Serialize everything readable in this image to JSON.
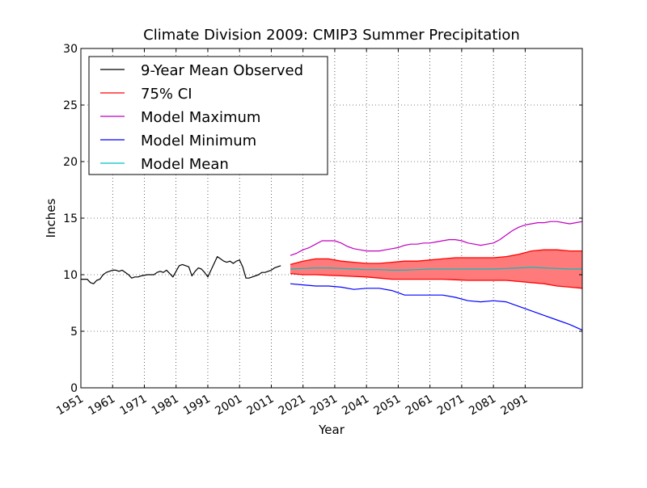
{
  "chart_data": {
    "type": "line",
    "title": "Climate Division 2009: CMIP3 Summer Precipitation",
    "xlabel": "Year",
    "ylabel": "Inches",
    "xlim": [
      1951,
      2109
    ],
    "ylim": [
      0,
      30
    ],
    "x_ticks": [
      1951,
      1961,
      1971,
      1981,
      1991,
      2001,
      2011,
      2021,
      2031,
      2041,
      2051,
      2061,
      2071,
      2081,
      2091
    ],
    "x_tick_labels": [
      "1951",
      "1961",
      "1971",
      "1981",
      "1991",
      "2001",
      "2011",
      "2021",
      "2031",
      "2041",
      "2051",
      "2061",
      "2071",
      "2081",
      "2091"
    ],
    "y_ticks": [
      0,
      5,
      10,
      15,
      20,
      25,
      30
    ],
    "y_tick_labels": [
      "0",
      "5",
      "10",
      "15",
      "20",
      "25",
      "30"
    ],
    "grid": true,
    "legend_position": "top-left",
    "series": [
      {
        "name": "9-Year Mean Observed",
        "color": "#000000",
        "x": [
          1951,
          1953,
          1954,
          1955,
          1956,
          1957,
          1958,
          1959,
          1960,
          1961,
          1962,
          1963,
          1964,
          1966,
          1967,
          1968,
          1969,
          1970,
          1972,
          1974,
          1975,
          1976,
          1977,
          1978,
          1979,
          1980,
          1981,
          1982,
          1983,
          1984,
          1985,
          1986,
          1987,
          1988,
          1989,
          1990,
          1991,
          1992,
          1993,
          1994,
          1995,
          1996,
          1997,
          1998,
          1999,
          2000,
          2001,
          2002,
          2003,
          2004,
          2005,
          2007,
          2008,
          2009,
          2010,
          2011,
          2012,
          2013,
          2014
        ],
        "y": [
          9.6,
          9.6,
          9.3,
          9.2,
          9.5,
          9.6,
          10.0,
          10.2,
          10.3,
          10.4,
          10.4,
          10.3,
          10.4,
          10.0,
          9.7,
          9.8,
          9.8,
          9.9,
          10.0,
          10.0,
          10.2,
          10.3,
          10.2,
          10.4,
          10.1,
          9.8,
          10.3,
          10.8,
          10.9,
          10.8,
          10.7,
          9.9,
          10.3,
          10.6,
          10.5,
          10.2,
          9.8,
          10.4,
          11.0,
          11.6,
          11.4,
          11.2,
          11.1,
          11.2,
          11.0,
          11.2,
          11.3,
          10.7,
          9.7,
          9.7,
          9.8,
          10.0,
          10.2,
          10.2,
          10.3,
          10.4,
          10.6,
          10.7,
          10.8
        ]
      },
      {
        "name": "75% CI",
        "color": "#ff0000",
        "fill_color": "#ff7b7b",
        "x": [
          2017,
          2021,
          2025,
          2029,
          2033,
          2037,
          2041,
          2045,
          2049,
          2053,
          2057,
          2061,
          2065,
          2069,
          2073,
          2077,
          2081,
          2085,
          2089,
          2093,
          2097,
          2101,
          2105,
          2109
        ],
        "upper": [
          10.9,
          11.2,
          11.4,
          11.4,
          11.2,
          11.1,
          11.0,
          11.0,
          11.1,
          11.2,
          11.2,
          11.3,
          11.4,
          11.5,
          11.5,
          11.5,
          11.5,
          11.6,
          11.8,
          12.1,
          12.2,
          12.2,
          12.1,
          12.1
        ],
        "lower": [
          10.1,
          10.0,
          10.0,
          9.95,
          9.9,
          9.85,
          9.8,
          9.7,
          9.6,
          9.6,
          9.6,
          9.6,
          9.6,
          9.55,
          9.5,
          9.5,
          9.5,
          9.5,
          9.4,
          9.3,
          9.2,
          9.0,
          8.9,
          8.8
        ]
      },
      {
        "name": "Model Maximum",
        "color": "#bf00bf",
        "x": [
          2017,
          2019,
          2021,
          2023,
          2025,
          2027,
          2029,
          2031,
          2033,
          2035,
          2037,
          2039,
          2041,
          2043,
          2045,
          2047,
          2049,
          2051,
          2053,
          2055,
          2057,
          2059,
          2061,
          2063,
          2065,
          2067,
          2069,
          2071,
          2073,
          2075,
          2077,
          2079,
          2081,
          2083,
          2085,
          2087,
          2089,
          2091,
          2093,
          2095,
          2097,
          2099,
          2101,
          2103,
          2105,
          2107,
          2109
        ],
        "y": [
          11.7,
          11.9,
          12.2,
          12.4,
          12.7,
          13.0,
          13.0,
          13.0,
          12.8,
          12.5,
          12.3,
          12.2,
          12.1,
          12.1,
          12.1,
          12.2,
          12.3,
          12.4,
          12.6,
          12.7,
          12.7,
          12.8,
          12.8,
          12.9,
          13.0,
          13.1,
          13.1,
          13.0,
          12.8,
          12.7,
          12.6,
          12.7,
          12.8,
          13.1,
          13.5,
          13.9,
          14.2,
          14.4,
          14.5,
          14.6,
          14.6,
          14.7,
          14.7,
          14.6,
          14.5,
          14.6,
          14.7
        ]
      },
      {
        "name": "Model Minimum",
        "color": "#0000ff",
        "x": [
          2017,
          2021,
          2025,
          2029,
          2033,
          2037,
          2041,
          2045,
          2049,
          2053,
          2057,
          2061,
          2065,
          2069,
          2073,
          2077,
          2081,
          2085,
          2089,
          2093,
          2097,
          2101,
          2105,
          2109
        ],
        "y": [
          9.2,
          9.1,
          9.0,
          9.0,
          8.9,
          8.7,
          8.8,
          8.8,
          8.6,
          8.2,
          8.2,
          8.2,
          8.2,
          8.0,
          7.7,
          7.6,
          7.7,
          7.6,
          7.2,
          6.8,
          6.4,
          6.0,
          5.6,
          5.1
        ]
      },
      {
        "name": "Model Mean",
        "color": "#00bfbf",
        "x": [
          2017,
          2021,
          2025,
          2029,
          2033,
          2037,
          2041,
          2045,
          2049,
          2053,
          2057,
          2061,
          2065,
          2069,
          2073,
          2077,
          2081,
          2085,
          2089,
          2093,
          2097,
          2101,
          2105,
          2109
        ],
        "y": [
          10.5,
          10.55,
          10.6,
          10.6,
          10.55,
          10.5,
          10.45,
          10.45,
          10.4,
          10.4,
          10.45,
          10.5,
          10.5,
          10.5,
          10.5,
          10.5,
          10.5,
          10.55,
          10.6,
          10.65,
          10.6,
          10.55,
          10.5,
          10.5
        ]
      }
    ]
  }
}
